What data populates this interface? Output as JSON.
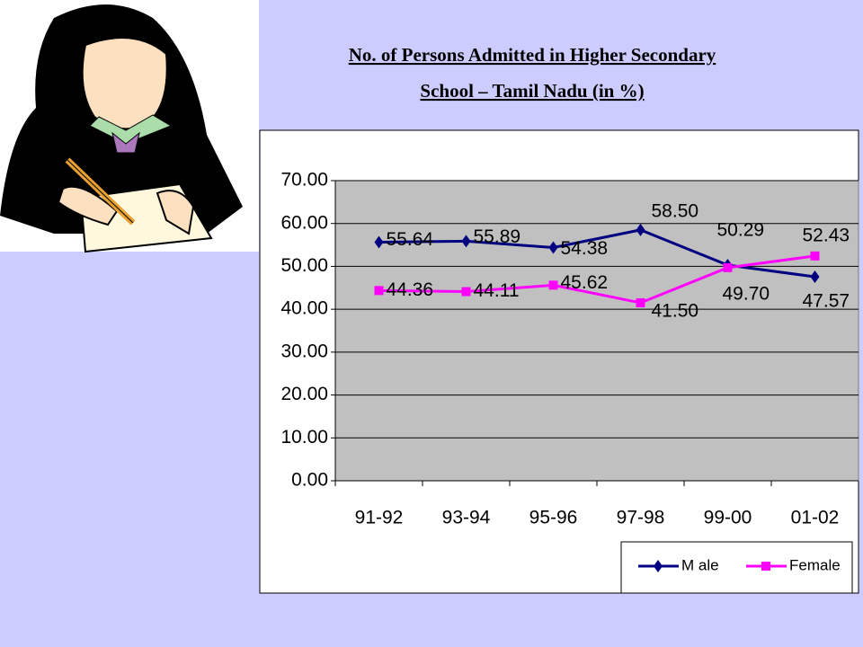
{
  "chart_data": {
    "type": "line",
    "title": "No. of Persons Admitted in Higher Secondary",
    "subtitle": "School –  Tamil Nadu  (in %)",
    "categories": [
      "91-92",
      "93-94",
      "95-96",
      "97-98",
      "99-00",
      "01-02"
    ],
    "series": [
      {
        "name": "M ale",
        "color": "#000080",
        "marker": "diamond",
        "values": [
          55.64,
          55.89,
          54.38,
          58.5,
          50.29,
          47.57
        ],
        "value_labels": [
          "55.64",
          "55.89",
          "54.38",
          "58.50",
          "50.29",
          "47.57"
        ]
      },
      {
        "name": "Female",
        "color": "#ff00ff",
        "marker": "square",
        "values": [
          44.36,
          44.11,
          45.62,
          41.5,
          49.7,
          52.43
        ],
        "value_labels": [
          "44.36",
          "44.11",
          "45.62",
          "41.50",
          "49.70",
          "52.43"
        ]
      }
    ],
    "ylim": [
      0,
      70
    ],
    "yticks": [
      {
        "value": 0,
        "label": "0.00"
      },
      {
        "value": 10,
        "label": "10.00"
      },
      {
        "value": 20,
        "label": "20.00"
      },
      {
        "value": 30,
        "label": "30.00"
      },
      {
        "value": 40,
        "label": "40.00"
      },
      {
        "value": 50,
        "label": "50.00"
      },
      {
        "value": 60,
        "label": "60.00"
      },
      {
        "value": 70,
        "label": "70.00"
      }
    ],
    "grid": true,
    "legend": "bottom-right"
  }
}
